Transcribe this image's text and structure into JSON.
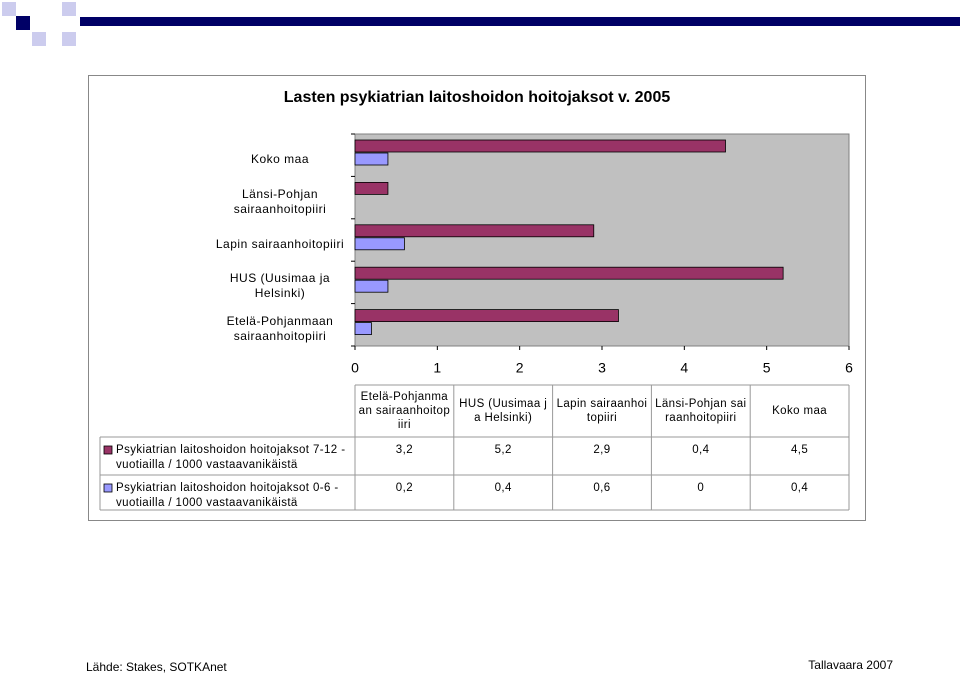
{
  "chart_data": {
    "type": "barh",
    "title": "Lasten psykiatrian laitoshoidon hoitojaksot v. 2005",
    "categories": [
      "Etelä-Pohjanmaan sairaanhoitopiiri",
      "HUS (Uusimaa ja Helsinki)",
      "Lapin sairaanhoitopiiri",
      "Länsi-Pohjan sairaanhoitopiiri",
      "Koko maa"
    ],
    "series": [
      {
        "name": "Psykiatrian laitoshoidon hoitojaksot 7-12 -vuotiailla / 1000 vastaavanikäistä",
        "color": "#993366",
        "values": [
          3.2,
          5.2,
          2.9,
          0.4,
          4.5
        ],
        "value_labels": [
          "3,2",
          "5,2",
          "2,9",
          "0,4",
          "4,5"
        ]
      },
      {
        "name": "Psykiatrian laitoshoidon hoitojaksot 0-6 -vuotiailla / 1000 vastaavanikäistä",
        "color": "#9999ff",
        "values": [
          0.2,
          0.4,
          0.6,
          0,
          0.4
        ],
        "value_labels": [
          "0,2",
          "0,4",
          "0,6",
          "0",
          "0,4"
        ]
      }
    ],
    "xlim": [
      0,
      6
    ],
    "xticks": [
      0,
      1,
      2,
      3,
      4,
      5,
      6
    ],
    "source": "Lähde: Stakes, SOTKAnet",
    "author": "Tallavaara 2007"
  }
}
